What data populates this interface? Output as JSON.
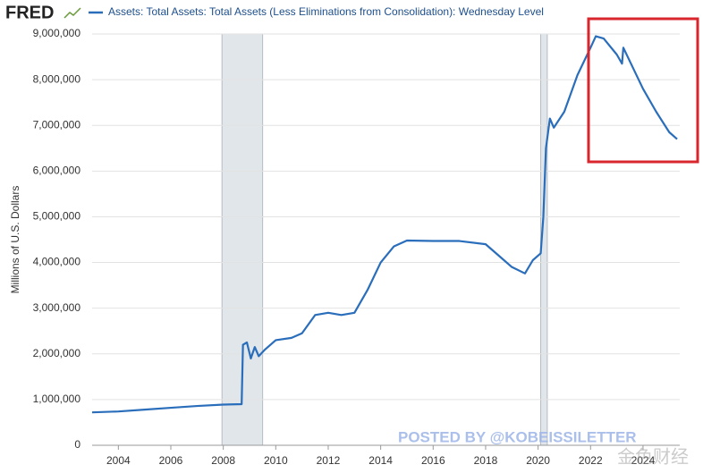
{
  "logo": "FRED",
  "chart_data": {
    "type": "line",
    "ylabel": "Millions of U.S. Dollars",
    "x": [
      2003.0,
      2004,
      2005,
      2006,
      2007,
      2008,
      2008.7,
      2008.75,
      2008.9,
      2009.05,
      2009.2,
      2009.35,
      2009.6,
      2010,
      2010.6,
      2011,
      2011.5,
      2012,
      2012.5,
      2013,
      2013.5,
      2014,
      2014.5,
      2015,
      2016,
      2017,
      2018,
      2018.5,
      2019,
      2019.5,
      2019.8,
      2020.1,
      2020.2,
      2020.3,
      2020.45,
      2020.6,
      2021,
      2021.5,
      2022,
      2022.2,
      2022.5,
      2023.0,
      2023.2,
      2023.25,
      2023.5,
      2024,
      2024.5,
      2025,
      2025.3
    ],
    "series": [
      {
        "name": "Assets: Total Assets: Total Assets (Less Eliminations from Consolidation): Wednesday Level",
        "color": "#2a6ebb",
        "values": [
          720000,
          740000,
          780000,
          820000,
          860000,
          890000,
          900000,
          2200000,
          2250000,
          1900000,
          2150000,
          1950000,
          2100000,
          2300000,
          2350000,
          2450000,
          2850000,
          2900000,
          2850000,
          2900000,
          3400000,
          4000000,
          4350000,
          4480000,
          4470000,
          4470000,
          4400000,
          4150000,
          3900000,
          3760000,
          4050000,
          4200000,
          5000000,
          6500000,
          7150000,
          6950000,
          7300000,
          8100000,
          8700000,
          8950000,
          8900000,
          8550000,
          8350000,
          8700000,
          8400000,
          7800000,
          7300000,
          6850000,
          6700000
        ]
      }
    ],
    "xlim": [
      2003,
      2025.4
    ],
    "xticks": [
      2004,
      2006,
      2008,
      2010,
      2012,
      2014,
      2016,
      2018,
      2020,
      2022,
      2024
    ],
    "ylim": [
      0,
      9000000
    ],
    "yticks": [
      0,
      {
        "value": 1000000,
        "label": "1,000,000"
      },
      {
        "value": 2000000,
        "label": "2,000,000"
      },
      {
        "value": 3000000,
        "label": "3,000,000"
      },
      {
        "value": 4000000,
        "label": "4,000,000"
      },
      {
        "value": 5000000,
        "label": "5,000,000"
      },
      {
        "value": 6000000,
        "label": "6,000,000"
      },
      {
        "value": 7000000,
        "label": "7,000,000"
      },
      {
        "value": 8000000,
        "label": "8,000,000"
      },
      {
        "value": 9000000,
        "label": "9,000,000"
      }
    ],
    "recessions": [
      [
        2007.95,
        2009.5
      ],
      [
        2020.1,
        2020.35
      ]
    ],
    "recession_color": "#e1e6ea",
    "grid": true,
    "annotations": [
      "POSTED BY @KOBEISSILETTER",
      "金色财经"
    ]
  }
}
